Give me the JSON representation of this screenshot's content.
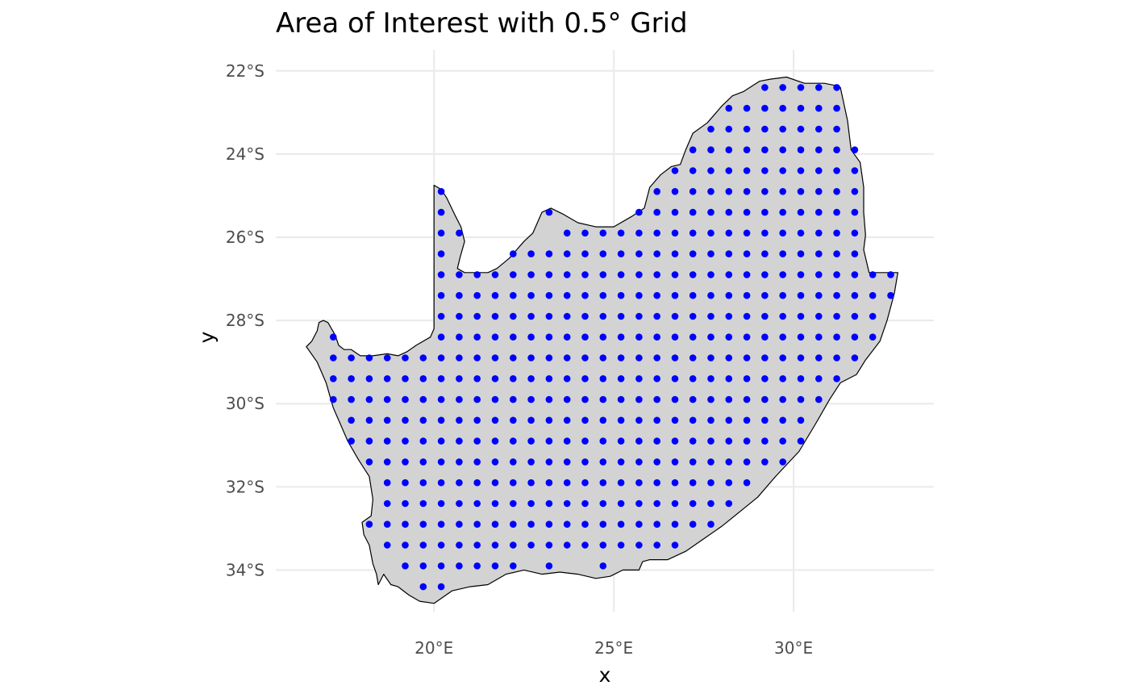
{
  "chart_data": {
    "type": "scatter",
    "title": "Area of Interest with 0.5° Grid",
    "xlabel": "x",
    "ylabel": "y",
    "x_ticks": [
      {
        "value": 20,
        "label": "20°E"
      },
      {
        "value": 25,
        "label": "25°E"
      },
      {
        "value": 30,
        "label": "30°E"
      }
    ],
    "y_ticks": [
      {
        "value": -22,
        "label": "22°S"
      },
      {
        "value": -24,
        "label": "24°S"
      },
      {
        "value": -26,
        "label": "26°S"
      },
      {
        "value": -28,
        "label": "28°S"
      },
      {
        "value": -30,
        "label": "30°S"
      },
      {
        "value": -32,
        "label": "32°S"
      },
      {
        "value": -34,
        "label": "34°S"
      }
    ],
    "xlim": [
      15.6,
      33.9
    ],
    "ylim": [
      -35.0,
      -21.5
    ],
    "grid": true,
    "colors": {
      "land_fill": "#d3d3d3",
      "land_border": "#000000",
      "points": "#0000ff",
      "gridlines": "#ebebeb"
    },
    "boundary": {
      "units": "degrees [lon, lat]",
      "coords": [
        [
          16.45,
          -28.63
        ],
        [
          16.6,
          -28.5
        ],
        [
          16.75,
          -28.25
        ],
        [
          16.8,
          -28.05
        ],
        [
          16.92,
          -28.0
        ],
        [
          17.05,
          -28.05
        ],
        [
          17.15,
          -28.2
        ],
        [
          17.25,
          -28.35
        ],
        [
          17.35,
          -28.6
        ],
        [
          17.5,
          -28.7
        ],
        [
          17.7,
          -28.7
        ],
        [
          17.95,
          -28.85
        ],
        [
          18.3,
          -28.85
        ],
        [
          18.7,
          -28.8
        ],
        [
          19.0,
          -28.85
        ],
        [
          19.25,
          -28.75
        ],
        [
          19.5,
          -28.6
        ],
        [
          19.9,
          -28.4
        ],
        [
          20.0,
          -28.2
        ],
        [
          20.0,
          -27.0
        ],
        [
          20.0,
          -25.98
        ],
        [
          20.0,
          -24.75
        ],
        [
          20.2,
          -24.85
        ],
        [
          20.35,
          -25.05
        ],
        [
          20.6,
          -25.5
        ],
        [
          20.75,
          -25.75
        ],
        [
          20.85,
          -26.1
        ],
        [
          20.72,
          -26.5
        ],
        [
          20.65,
          -26.75
        ],
        [
          20.85,
          -26.85
        ],
        [
          21.5,
          -26.85
        ],
        [
          21.75,
          -26.75
        ],
        [
          22.1,
          -26.5
        ],
        [
          22.5,
          -26.1
        ],
        [
          22.75,
          -25.9
        ],
        [
          23.0,
          -25.4
        ],
        [
          23.25,
          -25.3
        ],
        [
          23.6,
          -25.45
        ],
        [
          24.0,
          -25.65
        ],
        [
          24.5,
          -25.75
        ],
        [
          25.0,
          -25.75
        ],
        [
          25.5,
          -25.5
        ],
        [
          25.85,
          -25.3
        ],
        [
          26.0,
          -24.8
        ],
        [
          26.3,
          -24.5
        ],
        [
          26.6,
          -24.3
        ],
        [
          26.85,
          -24.25
        ],
        [
          27.0,
          -23.9
        ],
        [
          27.2,
          -23.5
        ],
        [
          27.6,
          -23.25
        ],
        [
          28.0,
          -22.85
        ],
        [
          28.3,
          -22.6
        ],
        [
          28.6,
          -22.5
        ],
        [
          29.05,
          -22.25
        ],
        [
          29.35,
          -22.2
        ],
        [
          29.8,
          -22.15
        ],
        [
          30.3,
          -22.3
        ],
        [
          30.85,
          -22.3
        ],
        [
          31.15,
          -22.35
        ],
        [
          31.3,
          -22.4
        ],
        [
          31.5,
          -23.2
        ],
        [
          31.6,
          -23.9
        ],
        [
          31.85,
          -24.2
        ],
        [
          31.95,
          -24.8
        ],
        [
          31.95,
          -25.4
        ],
        [
          32.0,
          -25.95
        ],
        [
          31.95,
          -26.3
        ],
        [
          32.1,
          -26.85
        ],
        [
          32.4,
          -26.85
        ],
        [
          32.9,
          -26.85
        ],
        [
          32.8,
          -27.35
        ],
        [
          32.6,
          -28.0
        ],
        [
          32.4,
          -28.5
        ],
        [
          32.0,
          -28.95
        ],
        [
          31.75,
          -29.3
        ],
        [
          31.3,
          -29.5
        ],
        [
          31.0,
          -29.9
        ],
        [
          30.6,
          -30.5
        ],
        [
          30.15,
          -31.15
        ],
        [
          29.5,
          -31.75
        ],
        [
          29.0,
          -32.25
        ],
        [
          28.5,
          -32.6
        ],
        [
          28.0,
          -32.95
        ],
        [
          27.5,
          -33.25
        ],
        [
          27.0,
          -33.55
        ],
        [
          26.5,
          -33.75
        ],
        [
          26.0,
          -33.75
        ],
        [
          25.8,
          -33.8
        ],
        [
          25.7,
          -34.0
        ],
        [
          25.25,
          -34.0
        ],
        [
          24.9,
          -34.15
        ],
        [
          24.5,
          -34.2
        ],
        [
          24.0,
          -34.1
        ],
        [
          23.5,
          -34.05
        ],
        [
          23.0,
          -34.1
        ],
        [
          22.5,
          -34.0
        ],
        [
          22.0,
          -34.1
        ],
        [
          21.5,
          -34.35
        ],
        [
          21.0,
          -34.4
        ],
        [
          20.5,
          -34.5
        ],
        [
          20.0,
          -34.8
        ],
        [
          19.6,
          -34.75
        ],
        [
          19.3,
          -34.6
        ],
        [
          19.0,
          -34.4
        ],
        [
          18.8,
          -34.35
        ],
        [
          18.6,
          -34.1
        ],
        [
          18.45,
          -34.35
        ],
        [
          18.4,
          -34.1
        ],
        [
          18.3,
          -33.85
        ],
        [
          18.2,
          -33.4
        ],
        [
          18.05,
          -33.15
        ],
        [
          18.0,
          -32.85
        ],
        [
          18.25,
          -32.7
        ],
        [
          18.3,
          -32.3
        ],
        [
          18.2,
          -31.75
        ],
        [
          17.9,
          -31.35
        ],
        [
          17.6,
          -30.9
        ],
        [
          17.4,
          -30.5
        ],
        [
          17.2,
          -30.1
        ],
        [
          17.0,
          -29.5
        ],
        [
          16.75,
          -29.0
        ],
        [
          16.45,
          -28.63
        ]
      ]
    },
    "grid_points": {
      "units": "degrees, 0.5° spacing",
      "rows": [
        {
          "lat": -22.4,
          "lons": [
            29.2,
            29.7,
            30.2,
            30.7,
            31.2
          ]
        },
        {
          "lat": -22.9,
          "lons": [
            28.2,
            28.7,
            29.2,
            29.7,
            30.2,
            30.7,
            31.2
          ]
        },
        {
          "lat": -23.4,
          "lons": [
            27.7,
            28.2,
            28.7,
            29.2,
            29.7,
            30.2,
            30.7,
            31.2
          ]
        },
        {
          "lat": -23.9,
          "lons": [
            27.2,
            27.7,
            28.2,
            28.7,
            29.2,
            29.7,
            30.2,
            30.7,
            31.2,
            31.7
          ]
        },
        {
          "lat": -24.4,
          "lons": [
            26.7,
            27.2,
            27.7,
            28.2,
            28.7,
            29.2,
            29.7,
            30.2,
            30.7,
            31.2,
            31.7
          ]
        },
        {
          "lat": -24.9,
          "lons": [
            20.2,
            26.2,
            26.7,
            27.2,
            27.7,
            28.2,
            28.7,
            29.2,
            29.7,
            30.2,
            30.7,
            31.2,
            31.7
          ]
        },
        {
          "lat": -25.4,
          "lons": [
            20.2,
            23.2,
            25.7,
            26.2,
            26.7,
            27.2,
            27.7,
            28.2,
            28.7,
            29.2,
            29.7,
            30.2,
            30.7,
            31.2,
            31.7
          ]
        },
        {
          "lat": -25.9,
          "lons": [
            20.2,
            20.7,
            23.7,
            24.2,
            24.7,
            25.2,
            25.7,
            26.2,
            26.7,
            27.2,
            27.7,
            28.2,
            28.7,
            29.2,
            29.7,
            30.2,
            30.7,
            31.2,
            31.7
          ]
        },
        {
          "lat": -26.4,
          "lons": [
            20.2,
            22.2,
            22.7,
            23.2,
            23.7,
            24.2,
            24.7,
            25.2,
            25.7,
            26.2,
            26.7,
            27.2,
            27.7,
            28.2,
            28.7,
            29.2,
            29.7,
            30.2,
            30.7,
            31.2,
            31.7
          ]
        },
        {
          "lat": -26.9,
          "lons": [
            20.2,
            20.7,
            21.2,
            21.7,
            22.2,
            22.7,
            23.2,
            23.7,
            24.2,
            24.7,
            25.2,
            25.7,
            26.2,
            26.7,
            27.2,
            27.7,
            28.2,
            28.7,
            29.2,
            29.7,
            30.2,
            30.7,
            31.2,
            31.7,
            32.2,
            32.7
          ]
        },
        {
          "lat": -27.4,
          "lons": [
            20.2,
            20.7,
            21.2,
            21.7,
            22.2,
            22.7,
            23.2,
            23.7,
            24.2,
            24.7,
            25.2,
            25.7,
            26.2,
            26.7,
            27.2,
            27.7,
            28.2,
            28.7,
            29.2,
            29.7,
            30.2,
            30.7,
            31.2,
            31.7,
            32.2,
            32.7
          ]
        },
        {
          "lat": -27.9,
          "lons": [
            20.2,
            20.7,
            21.2,
            21.7,
            22.2,
            22.7,
            23.2,
            23.7,
            24.2,
            24.7,
            25.2,
            25.7,
            26.2,
            26.7,
            27.2,
            27.7,
            28.2,
            28.7,
            29.2,
            29.7,
            30.2,
            30.7,
            31.2,
            31.7,
            32.2
          ]
        },
        {
          "lat": -28.4,
          "lons": [
            17.2,
            20.2,
            20.7,
            21.2,
            21.7,
            22.2,
            22.7,
            23.2,
            23.7,
            24.2,
            24.7,
            25.2,
            25.7,
            26.2,
            26.7,
            27.2,
            27.7,
            28.2,
            28.7,
            29.2,
            29.7,
            30.2,
            30.7,
            31.2,
            31.7,
            32.2
          ]
        },
        {
          "lat": -28.9,
          "lons": [
            17.2,
            17.7,
            18.2,
            18.7,
            19.2,
            19.7,
            20.2,
            20.7,
            21.2,
            21.7,
            22.2,
            22.7,
            23.2,
            23.7,
            24.2,
            24.7,
            25.2,
            25.7,
            26.2,
            26.7,
            27.2,
            27.7,
            28.2,
            28.7,
            29.2,
            29.7,
            30.2,
            30.7,
            31.2,
            31.7
          ]
        },
        {
          "lat": -29.4,
          "lons": [
            17.2,
            17.7,
            18.2,
            18.7,
            19.2,
            19.7,
            20.2,
            20.7,
            21.2,
            21.7,
            22.2,
            22.7,
            23.2,
            23.7,
            24.2,
            24.7,
            25.2,
            25.7,
            26.2,
            26.7,
            27.2,
            27.7,
            28.2,
            28.7,
            29.2,
            29.7,
            30.2,
            30.7,
            31.2
          ]
        },
        {
          "lat": -29.9,
          "lons": [
            17.2,
            17.7,
            18.2,
            18.7,
            19.2,
            19.7,
            20.2,
            20.7,
            21.2,
            21.7,
            22.2,
            22.7,
            23.2,
            23.7,
            24.2,
            24.7,
            25.2,
            25.7,
            26.2,
            26.7,
            27.2,
            27.7,
            28.2,
            28.7,
            29.2,
            29.7,
            30.2,
            30.7
          ]
        },
        {
          "lat": -30.4,
          "lons": [
            17.7,
            18.2,
            18.7,
            19.2,
            19.7,
            20.2,
            20.7,
            21.2,
            21.7,
            22.2,
            22.7,
            23.2,
            23.7,
            24.2,
            24.7,
            25.2,
            25.7,
            26.2,
            26.7,
            27.2,
            27.7,
            28.2,
            28.7,
            29.2,
            29.7,
            30.2
          ]
        },
        {
          "lat": -30.9,
          "lons": [
            17.7,
            18.2,
            18.7,
            19.2,
            19.7,
            20.2,
            20.7,
            21.2,
            21.7,
            22.2,
            22.7,
            23.2,
            23.7,
            24.2,
            24.7,
            25.2,
            25.7,
            26.2,
            26.7,
            27.2,
            27.7,
            28.2,
            28.7,
            29.2,
            29.7,
            30.2
          ]
        },
        {
          "lat": -31.4,
          "lons": [
            18.2,
            18.7,
            19.2,
            19.7,
            20.2,
            20.7,
            21.2,
            21.7,
            22.2,
            22.7,
            23.2,
            23.7,
            24.2,
            24.7,
            25.2,
            25.7,
            26.2,
            26.7,
            27.2,
            27.7,
            28.2,
            28.7,
            29.2,
            29.7
          ]
        },
        {
          "lat": -31.9,
          "lons": [
            18.7,
            19.2,
            19.7,
            20.2,
            20.7,
            21.2,
            21.7,
            22.2,
            22.7,
            23.2,
            23.7,
            24.2,
            24.7,
            25.2,
            25.7,
            26.2,
            26.7,
            27.2,
            27.7,
            28.2,
            28.7
          ]
        },
        {
          "lat": -32.4,
          "lons": [
            18.7,
            19.2,
            19.7,
            20.2,
            20.7,
            21.2,
            21.7,
            22.2,
            22.7,
            23.2,
            23.7,
            24.2,
            24.7,
            25.2,
            25.7,
            26.2,
            26.7,
            27.2,
            27.7,
            28.2
          ]
        },
        {
          "lat": -32.9,
          "lons": [
            18.2,
            18.7,
            19.2,
            19.7,
            20.2,
            20.7,
            21.2,
            21.7,
            22.2,
            22.7,
            23.2,
            23.7,
            24.2,
            24.7,
            25.2,
            25.7,
            26.2,
            26.7,
            27.2,
            27.7
          ]
        },
        {
          "lat": -33.4,
          "lons": [
            18.7,
            19.2,
            19.7,
            20.2,
            20.7,
            21.2,
            21.7,
            22.2,
            22.7,
            23.2,
            23.7,
            24.2,
            24.7,
            25.2,
            25.7,
            26.2,
            26.7
          ]
        },
        {
          "lat": -33.9,
          "lons": [
            19.2,
            19.7,
            20.2,
            20.7,
            21.2,
            21.7,
            22.2,
            23.2,
            24.7
          ]
        },
        {
          "lat": -34.4,
          "lons": [
            19.7,
            20.2
          ]
        }
      ]
    }
  }
}
